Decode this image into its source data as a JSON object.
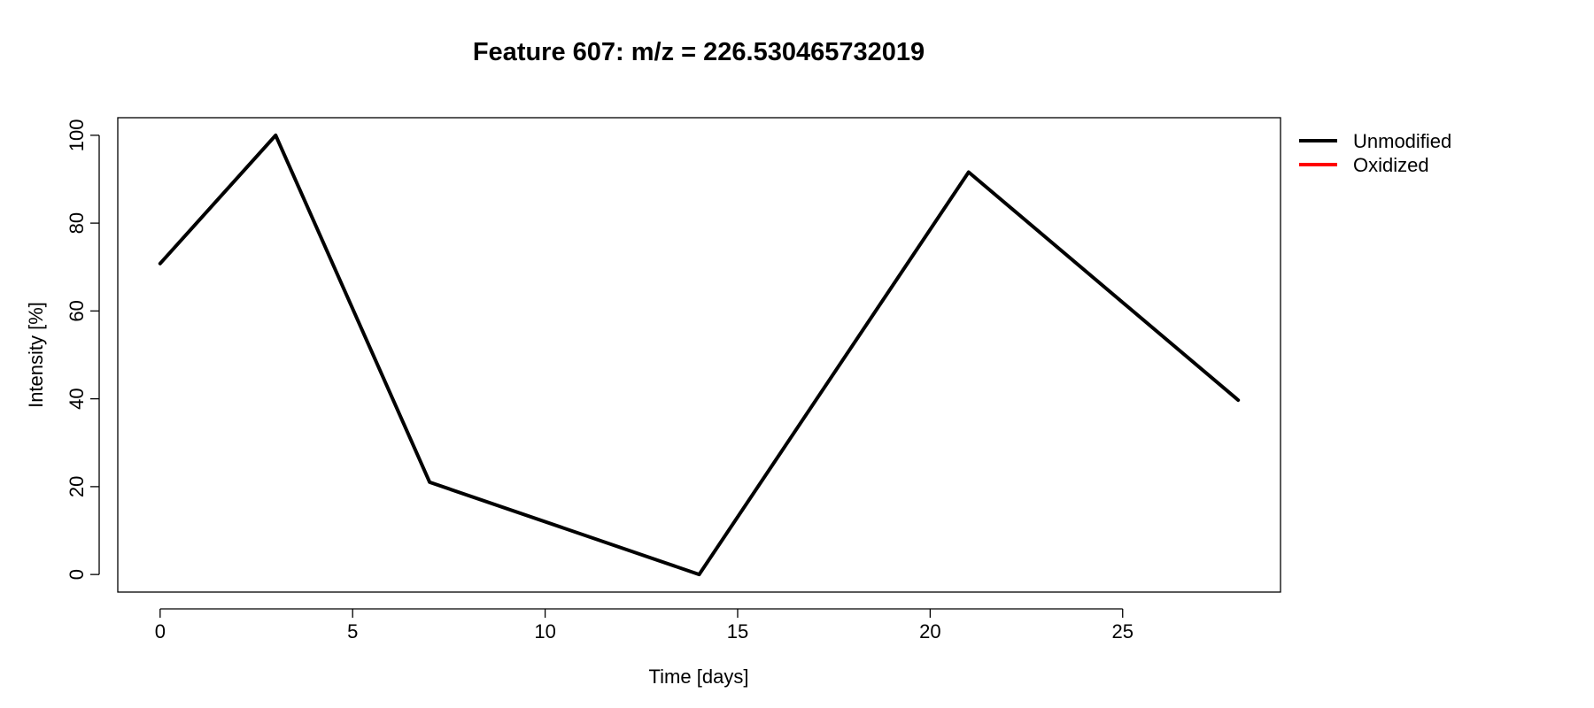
{
  "chart_data": {
    "type": "line",
    "title": "Feature 607: m/z = 226.530465732019",
    "xlabel": "Time [days]",
    "ylabel": "Intensity [%]",
    "xlim": [
      -1.1,
      29.1
    ],
    "ylim": [
      -4,
      104
    ],
    "x_ticks": [
      0,
      5,
      10,
      15,
      20,
      25
    ],
    "y_ticks": [
      0,
      20,
      40,
      60,
      80,
      100
    ],
    "grid": false,
    "legend_position": "outside-top-right",
    "series": [
      {
        "name": "Unmodified",
        "color": "#000000",
        "x": [
          0,
          3,
          7,
          14,
          21,
          28
        ],
        "y": [
          70.8,
          100,
          21,
          0,
          91.6,
          39.7
        ]
      },
      {
        "name": "Oxidized",
        "color": "#ff0000",
        "x": [],
        "y": []
      }
    ]
  }
}
